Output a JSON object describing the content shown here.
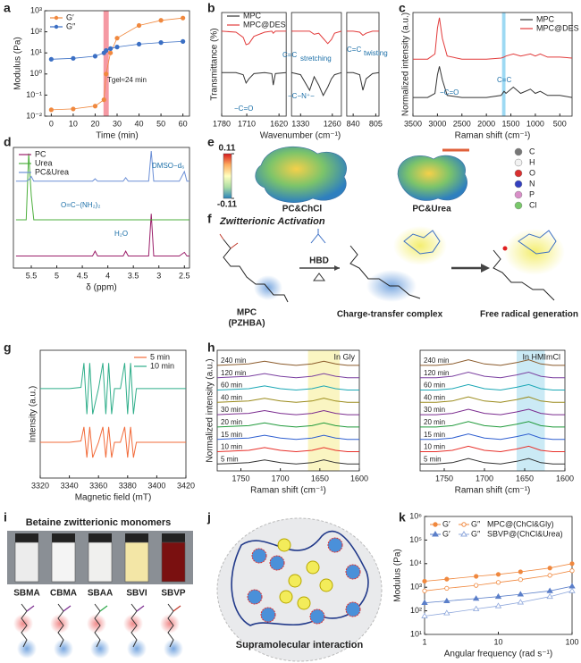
{
  "panel_labels": [
    "a",
    "b",
    "c",
    "d",
    "e",
    "f",
    "g",
    "h",
    "i",
    "j",
    "k"
  ],
  "chart_data": [
    {
      "type": "line",
      "xlabel": "Time (min)",
      "ylabel": "Modulus (Pa)",
      "ylog": true,
      "x": [
        0,
        10,
        20,
        24,
        25,
        27,
        30,
        40,
        50,
        60
      ],
      "series": [
        {
          "name": "G′",
          "color": "#f0883e",
          "marker": "circle",
          "values": [
            0.02,
            0.022,
            0.03,
            0.06,
            1,
            10,
            50,
            200,
            350,
            450
          ]
        },
        {
          "name": "G″",
          "color": "#3b6fc4",
          "marker": "circle",
          "values": [
            5,
            5.5,
            7,
            10,
            13,
            16,
            19,
            26,
            31,
            35
          ]
        }
      ],
      "xlim": [
        -3,
        63
      ],
      "xticks": [
        0,
        10,
        20,
        30,
        40,
        50,
        60
      ],
      "ylim": [
        0.01,
        1000
      ],
      "yticks": [
        {
          "value": 0.01,
          "label": "10⁻²"
        },
        {
          "value": 0.1,
          "label": "10⁻¹"
        },
        {
          "value": 1,
          "label": "10⁰"
        },
        {
          "value": 10,
          "label": "10¹"
        },
        {
          "value": 100,
          "label": "10²"
        },
        {
          "value": 1000,
          "label": "10³"
        }
      ],
      "band": [
        23.8,
        26.2
      ],
      "band_color": "#ee5566",
      "legend": "upper left",
      "annotations": [
        "Tgel≈24 min"
      ]
    },
    {
      "type": "line",
      "xlabel": "Wavenumber (cm⁻¹)",
      "ylabel": "Transmittance (%)",
      "ylim": [
        0,
        100
      ],
      "series": [
        {
          "name": "MPC",
          "color": "#333333"
        },
        {
          "name": "MPC@DES",
          "color": "#e23b3b"
        }
      ],
      "segments": [
        {
          "xlim": [
            1780,
            1600
          ],
          "xticks": [
            1780,
            1710,
            1620
          ],
          "x": [
            1780,
            1740,
            1720,
            1712,
            1704,
            1690,
            1660,
            1640,
            1636,
            1630,
            1600
          ],
          "values": [
            [
              42,
              42,
              40,
              32,
              36,
              41,
              42,
              41,
              30,
              41,
              42
            ],
            [
              82,
              81,
              76,
              69,
              70,
              77,
              81,
              82,
              80,
              82,
              82
            ]
          ]
        },
        {
          "xlim": [
            1350,
            1240
          ],
          "xticks": [
            1330,
            1260
          ],
          "x": [
            1350,
            1330,
            1310,
            1300,
            1290,
            1280,
            1270,
            1262,
            1255,
            1240
          ],
          "values": [
            [
              42,
              40,
              25,
              38,
              30,
              20,
              28,
              36,
              40,
              42
            ],
            [
              82,
              82,
              82,
              79,
              80,
              75,
              70,
              74,
              80,
              82
            ]
          ]
        },
        {
          "xlim": [
            850,
            800
          ],
          "xticks": [
            840,
            805
          ],
          "x": [
            850,
            840,
            830,
            825,
            820,
            810,
            800
          ],
          "values": [
            [
              42,
              42,
              40,
              25,
              36,
              41,
              42
            ],
            [
              82,
              82,
              81,
              78,
              80,
              82,
              82
            ]
          ]
        }
      ],
      "legend": "upper left",
      "annotations": [
        "−C=O",
        "C=C",
        "stretching",
        "−C−N⁺−",
        "C=C",
        "twisting"
      ]
    },
    {
      "type": "line",
      "xlabel": "Raman shift (cm⁻¹)",
      "ylabel": "Normalized intensity (a.u.)",
      "x": [
        3500,
        3200,
        3050,
        3000,
        2960,
        2900,
        2800,
        2500,
        2000,
        1700,
        1640,
        1600,
        1450,
        1300,
        1100,
        1000,
        900,
        750,
        500,
        250
      ],
      "series": [
        {
          "name": "MPC",
          "color": "#333333",
          "values": [
            18,
            18,
            22,
            40,
            48,
            35,
            20,
            18,
            18,
            20,
            24,
            22,
            28,
            22,
            26,
            22,
            24,
            20,
            20,
            18
          ]
        },
        {
          "name": "MPC@DES",
          "color": "#e23b3b",
          "values": [
            55,
            55,
            60,
            85,
            95,
            75,
            58,
            55,
            55,
            56,
            57,
            58,
            60,
            58,
            60,
            58,
            60,
            57,
            57,
            56
          ]
        }
      ],
      "xlim": [
        3500,
        250
      ],
      "xticks": [
        3500,
        3000,
        2500,
        2000,
        1500,
        1000,
        500
      ],
      "ylim": [
        0,
        100
      ],
      "band": [
        1680,
        1610
      ],
      "band_color": "#5bc0eb",
      "legend": "upper right",
      "annotations": [
        "−C=O",
        "C=C"
      ]
    },
    {
      "type": "line",
      "xlabel": "δ (ppm)",
      "x": [
        5.8,
        5.6,
        5.55,
        5.5,
        5.45,
        5.3,
        5.0,
        4.3,
        4.25,
        4.2,
        3.7,
        3.65,
        3.6,
        3.2,
        3.15,
        3.1,
        2.6,
        2.5,
        2.45,
        2.4
      ],
      "series": [
        {
          "name": "PC",
          "color": "#9b1f6a",
          "values": [
            10,
            10,
            10,
            10,
            10,
            10,
            10,
            10,
            14,
            10,
            10,
            14,
            10,
            10,
            45,
            10,
            10,
            13,
            10,
            10
          ]
        },
        {
          "name": "Urea",
          "color": "#4caf3c",
          "values": [
            40,
            40,
            95,
            60,
            40,
            40,
            40,
            40,
            40,
            40,
            40,
            40,
            40,
            40,
            40,
            40,
            40,
            40,
            40,
            40
          ]
        },
        {
          "name": "PC&Urea",
          "color": "#6b8fd6",
          "values": [
            72,
            72,
            73,
            76,
            72,
            72,
            72,
            72,
            74,
            72,
            72,
            75,
            72,
            72,
            97,
            72,
            72,
            80,
            72,
            72
          ]
        }
      ],
      "xlim": [
        5.85,
        2.4
      ],
      "xticks": [
        5.5,
        5.0,
        4.5,
        4.0,
        3.5,
        3.0,
        2.5
      ],
      "ylim": [
        0,
        100
      ],
      "legend": "upper left",
      "annotations": [
        "O=C−(NH₂)₂",
        "H₂O",
        "DMSO−d₆"
      ]
    },
    {
      "type": "line",
      "xlabel": "Magnetic field (mT)",
      "ylabel": "Intensity (a.u.)",
      "x": [
        3320,
        3340,
        3348,
        3350,
        3352,
        3354,
        3356,
        3360,
        3363,
        3365,
        3367,
        3369,
        3371,
        3375,
        3378,
        3380,
        3382,
        3384,
        3386,
        3400,
        3420
      ],
      "series": [
        {
          "name": "5 min",
          "color": "#f26b3a",
          "values": [
            28,
            28,
            29,
            40,
            16,
            40,
            16,
            28,
            40,
            16,
            40,
            16,
            28,
            28,
            40,
            16,
            40,
            16,
            28,
            28,
            28
          ]
        },
        {
          "name": "10 min",
          "color": "#2fae8a",
          "values": [
            70,
            70,
            71,
            90,
            50,
            90,
            50,
            70,
            90,
            50,
            90,
            50,
            70,
            70,
            90,
            50,
            90,
            50,
            70,
            70,
            70
          ]
        }
      ],
      "xlim": [
        3320,
        3420
      ],
      "xticks": [
        3320,
        3340,
        3360,
        3380,
        3400,
        3420
      ],
      "ylim": [
        0,
        100
      ],
      "legend": "upper right"
    },
    {
      "type": "line",
      "title": "In Gly",
      "xlabel": "Raman shift (cm⁻¹)",
      "ylabel": "Normalized intensity (a.u.)",
      "x": [
        1780,
        1760,
        1740,
        1720,
        1700,
        1680,
        1660,
        1645,
        1630,
        1615,
        1600
      ],
      "series": [
        {
          "name": "5 min",
          "color": "#333333",
          "values": [
            5,
            5.5,
            6,
            8,
            6,
            5,
            6,
            8,
            6,
            5,
            5
          ]
        },
        {
          "name": "10 min",
          "color": "#e8302a",
          "values": [
            14,
            14.5,
            15,
            17,
            15,
            14,
            15,
            17,
            15,
            14,
            14
          ]
        },
        {
          "name": "15 min",
          "color": "#2f5fd0",
          "values": [
            23,
            23.5,
            24,
            26,
            24,
            23,
            24,
            26,
            24,
            23,
            23
          ]
        },
        {
          "name": "20 min",
          "color": "#1f9a3a",
          "values": [
            32,
            32.5,
            33,
            35,
            33,
            32,
            33,
            35,
            33,
            32,
            32
          ]
        },
        {
          "name": "30 min",
          "color": "#7b2c8f",
          "values": [
            41,
            41.5,
            42,
            44,
            42,
            41,
            42,
            44,
            42,
            41,
            41
          ]
        },
        {
          "name": "40 min",
          "color": "#9a8a1a",
          "values": [
            50,
            50.5,
            51,
            53,
            51,
            50,
            51,
            53,
            51,
            50,
            50
          ]
        },
        {
          "name": "60 min",
          "color": "#1aa7b5",
          "values": [
            59,
            59.5,
            60,
            62,
            60,
            59,
            60,
            62,
            60,
            59,
            59
          ]
        },
        {
          "name": "120 min",
          "color": "#7a3fa0",
          "values": [
            68,
            68.5,
            69,
            71,
            69,
            68,
            69,
            71,
            69,
            68,
            68
          ]
        },
        {
          "name": "240 min",
          "color": "#8a5a2a",
          "values": [
            77,
            77.5,
            78,
            80,
            78,
            77,
            78,
            80,
            78,
            77,
            77
          ]
        }
      ],
      "xlim": [
        1780,
        1600
      ],
      "xticks": [
        1750,
        1700,
        1650,
        1600
      ],
      "ylim": [
        0,
        88
      ],
      "band": [
        1665,
        1625
      ],
      "band_color": "#f6ef9a",
      "legend": "inline"
    },
    {
      "type": "line",
      "title": "In HMImCl",
      "xlabel": "Raman shift (cm⁻¹)",
      "x": [
        1780,
        1760,
        1740,
        1720,
        1700,
        1680,
        1660,
        1645,
        1630,
        1615,
        1600
      ],
      "series": [
        {
          "name": "5 min",
          "color": "#333333",
          "values": [
            5,
            5,
            6,
            9,
            6,
            5,
            7,
            9,
            6,
            5,
            5
          ]
        },
        {
          "name": "10 min",
          "color": "#e8302a",
          "values": [
            14,
            14,
            15,
            18,
            15,
            14,
            16,
            18,
            15,
            14,
            14
          ]
        },
        {
          "name": "15 min",
          "color": "#2f5fd0",
          "values": [
            23,
            23,
            24,
            27,
            24,
            23,
            25,
            27,
            24,
            23,
            23
          ]
        },
        {
          "name": "20 min",
          "color": "#1f9a3a",
          "values": [
            32,
            32,
            33,
            36,
            33,
            32,
            34,
            36,
            33,
            32,
            32
          ]
        },
        {
          "name": "30 min",
          "color": "#7b2c8f",
          "values": [
            41,
            41,
            42,
            45,
            42,
            41,
            43,
            45,
            42,
            41,
            41
          ]
        },
        {
          "name": "40 min",
          "color": "#9a8a1a",
          "values": [
            50,
            50,
            51,
            54,
            51,
            50,
            52,
            54,
            51,
            50,
            50
          ]
        },
        {
          "name": "60 min",
          "color": "#1aa7b5",
          "values": [
            59,
            59,
            60,
            63,
            60,
            59,
            61,
            63,
            60,
            59,
            59
          ]
        },
        {
          "name": "120 min",
          "color": "#7a3fa0",
          "values": [
            68,
            68,
            69,
            72,
            69,
            68,
            70,
            72,
            69,
            68,
            68
          ]
        },
        {
          "name": "240 min",
          "color": "#8a5a2a",
          "values": [
            77,
            77,
            78,
            81,
            78,
            77,
            79,
            81,
            78,
            77,
            77
          ]
        }
      ],
      "xlim": [
        1780,
        1600
      ],
      "xticks": [
        1750,
        1700,
        1650,
        1600
      ],
      "ylim": [
        0,
        88
      ],
      "band": [
        1660,
        1625
      ],
      "band_color": "#a9dcef",
      "legend": "inline"
    },
    {
      "type": "line",
      "xlabel": "Angular frequency (rad s⁻¹)",
      "ylabel": "Modulus (Pa)",
      "xlog": true,
      "ylog": true,
      "x": [
        1,
        2,
        5,
        10,
        20,
        50,
        100
      ],
      "series": [
        {
          "name": "G′",
          "color": "#f0883e",
          "marker": "circle",
          "values": [
            1800,
            2200,
            2900,
            3500,
            4500,
            6500,
            10000
          ]
        },
        {
          "name": "G″",
          "color": "#f0883e",
          "marker": "circle",
          "open": true,
          "values": [
            700,
            900,
            1200,
            1600,
            2100,
            3200,
            5000
          ]
        },
        {
          "name": "G′",
          "color": "#5b7fc9",
          "marker": "triangle",
          "values": [
            220,
            260,
            330,
            400,
            500,
            700,
            1100
          ]
        },
        {
          "name": "G″",
          "color": "#8fa8dc",
          "marker": "triangle",
          "open": true,
          "values": [
            60,
            80,
            120,
            160,
            230,
            400,
            700
          ]
        }
      ],
      "legend_groups": [
        "MPC@(ChCl&Gly)",
        "SBVP@(ChCl&Urea)"
      ],
      "xlim": [
        1,
        100
      ],
      "xticks": [
        1,
        10,
        100
      ],
      "ylim": [
        10,
        1000000
      ],
      "yticks": [
        {
          "value": 10,
          "label": "10¹"
        },
        {
          "value": 100,
          "label": "10²"
        },
        {
          "value": 1000,
          "label": "10³"
        },
        {
          "value": 10000,
          "label": "10⁴"
        },
        {
          "value": 100000,
          "label": "10⁵"
        },
        {
          "value": 1000000,
          "label": "10⁶"
        }
      ],
      "legend": "upper left"
    }
  ],
  "diagrams": {
    "e": {
      "colorbar": [
        0.11,
        -0.11
      ],
      "molecules": [
        "PC&ChCl",
        "PC&Urea"
      ],
      "atoms": [
        "C",
        "H",
        "O",
        "N",
        "P",
        "Cl"
      ]
    },
    "f": {
      "title": "Zwitterionic Activation",
      "monomer": "MPC",
      "monomer_alt": "(PZHBA)",
      "reagent": "HBD",
      "steps": [
        "Charge-transfer complex",
        "Free radical generation"
      ]
    },
    "i": {
      "title": "Betaine zwitterionic monomers",
      "monomers": [
        "SBMA",
        "CBMA",
        "SBAA",
        "SBVI",
        "SBVP"
      ]
    },
    "j": {
      "caption": "Supramolecular interaction"
    }
  }
}
